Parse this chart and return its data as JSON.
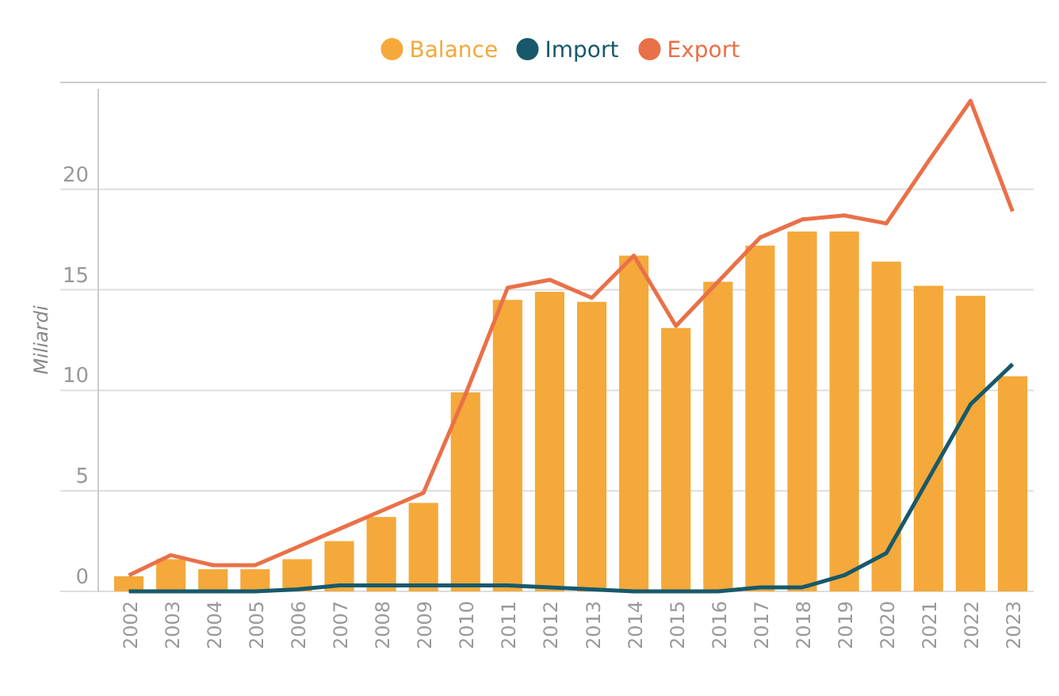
{
  "chart_data": {
    "type": "bar",
    "ylabel": "Miliardi",
    "categories": [
      "2002",
      "2003",
      "2004",
      "2005",
      "2006",
      "2007",
      "2008",
      "2009",
      "2010",
      "2011",
      "2012",
      "2013",
      "2014",
      "2015",
      "2016",
      "2017",
      "2018",
      "2019",
      "2020",
      "2021",
      "2022",
      "2023"
    ],
    "series": [
      {
        "name": "Balance",
        "color": "#f4a93a",
        "values": [
          0.75,
          1.6,
          1.1,
          1.1,
          1.6,
          2.5,
          3.7,
          4.4,
          9.9,
          14.5,
          14.9,
          14.4,
          16.7,
          13.1,
          15.4,
          17.2,
          17.9,
          17.9,
          16.4,
          15.2,
          14.7,
          10.7
        ]
      },
      {
        "name": "Import",
        "type": "line",
        "color": "#17596b",
        "values": [
          0,
          0,
          0,
          0,
          0.1,
          0.3,
          0.3,
          0.3,
          0.3,
          0.3,
          0.2,
          0.1,
          0,
          0,
          0,
          0.2,
          0.2,
          0.8,
          1.9,
          5.6,
          9.3,
          11.3
        ]
      },
      {
        "name": "Export",
        "type": "line",
        "color": "#ea7048",
        "values": [
          0.8,
          1.8,
          1.3,
          1.3,
          2.2,
          3.1,
          4.0,
          4.9,
          9.8,
          15.1,
          15.5,
          14.6,
          16.7,
          13.2,
          15.4,
          17.6,
          18.5,
          18.7,
          18.3,
          21.4,
          24.4,
          18.9
        ]
      }
    ],
    "ylim": [
      0,
      25
    ],
    "yticks": [
      0,
      5,
      10,
      15,
      20
    ],
    "grid": "y",
    "legend": "top"
  }
}
